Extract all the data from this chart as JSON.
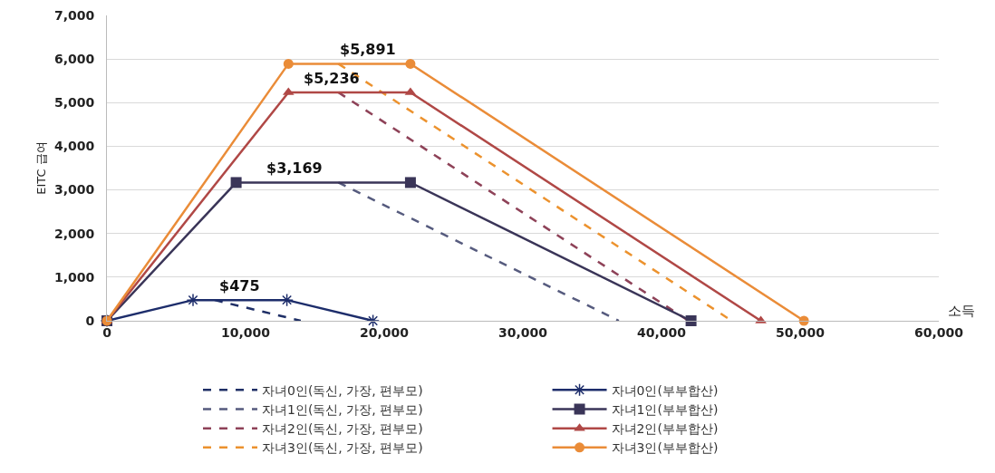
{
  "chart_data": {
    "type": "line",
    "ylabel": "EITC 급여",
    "xlabel": "소득",
    "xlim": [
      0,
      60000
    ],
    "xticks": [
      {
        "value": 0,
        "label": "0"
      },
      {
        "value": 10000,
        "label": "10,000"
      },
      {
        "value": 20000,
        "label": "20,000"
      },
      {
        "value": 30000,
        "label": "30,000"
      },
      {
        "value": 40000,
        "label": "40,000"
      },
      {
        "value": 50000,
        "label": "50,000"
      },
      {
        "value": 60000,
        "label": "60,000"
      }
    ],
    "ylim": [
      0,
      7000
    ],
    "yticks": [
      {
        "value": 0,
        "label": "0"
      },
      {
        "value": 1000,
        "label": "1,000"
      },
      {
        "value": 2000,
        "label": "2,000"
      },
      {
        "value": 3000,
        "label": "3,000"
      },
      {
        "value": 4000,
        "label": "4,000"
      },
      {
        "value": 5000,
        "label": "5,000"
      },
      {
        "value": 6000,
        "label": "6,000"
      },
      {
        "value": 7000,
        "label": "7,000"
      }
    ],
    "grid": "y",
    "legend": "bottom",
    "series": [
      {
        "name": "자녀0인(독신, 가장, 편부모)",
        "color": "#1f2f66",
        "line_style": "dashed",
        "marker": "none",
        "x": [
          7770,
          13980
        ],
        "values": [
          475,
          0
        ]
      },
      {
        "name": "자녀1인(독신, 가장, 편부모)",
        "color": "#565b7e",
        "line_style": "dashed",
        "marker": "none",
        "x": [
          16690,
          36920
        ],
        "values": [
          3169,
          0
        ]
      },
      {
        "name": "자녀2인(독신, 가장, 편부모)",
        "color": "#8e4258",
        "line_style": "dashed",
        "marker": "none",
        "x": [
          16690,
          41952
        ],
        "values": [
          5236,
          0
        ]
      },
      {
        "name": "자녀3인(독신, 가장, 편부모)",
        "color": "#ec922e",
        "line_style": "dashed",
        "marker": "none",
        "x": [
          16690,
          45060
        ],
        "values": [
          5891,
          0
        ]
      },
      {
        "name": "자녀0인(부부합산)",
        "color": "#1d2d6b",
        "line_style": "solid",
        "marker": "cross",
        "x": [
          0,
          6210,
          12980,
          19190
        ],
        "values": [
          0,
          475,
          475,
          0
        ]
      },
      {
        "name": "자녀1인(부부합산)",
        "color": "#3a3558",
        "line_style": "solid",
        "marker": "square",
        "x": [
          0,
          9320,
          21890,
          42130
        ],
        "values": [
          0,
          3169,
          3169,
          0
        ]
      },
      {
        "name": "자녀2인(부부합산)",
        "color": "#b04846",
        "line_style": "solid",
        "marker": "triangle",
        "x": [
          0,
          13090,
          21890,
          47162
        ],
        "values": [
          0,
          5236,
          5236,
          0
        ]
      },
      {
        "name": "자녀3인(부부합산)",
        "color": "#ea8c38",
        "line_style": "solid",
        "marker": "circle",
        "x": [
          0,
          13090,
          21890,
          50270
        ],
        "values": [
          0,
          5891,
          5891,
          0
        ]
      }
    ],
    "annotations": [
      {
        "text": "$475",
        "x": 9600,
        "y": 475
      },
      {
        "text": "$3,169",
        "x": 13500,
        "y": 3169
      },
      {
        "text": "$5,236",
        "x": 16200,
        "y": 5236
      },
      {
        "text": "$5,891",
        "x": 18800,
        "y": 5891
      }
    ]
  }
}
